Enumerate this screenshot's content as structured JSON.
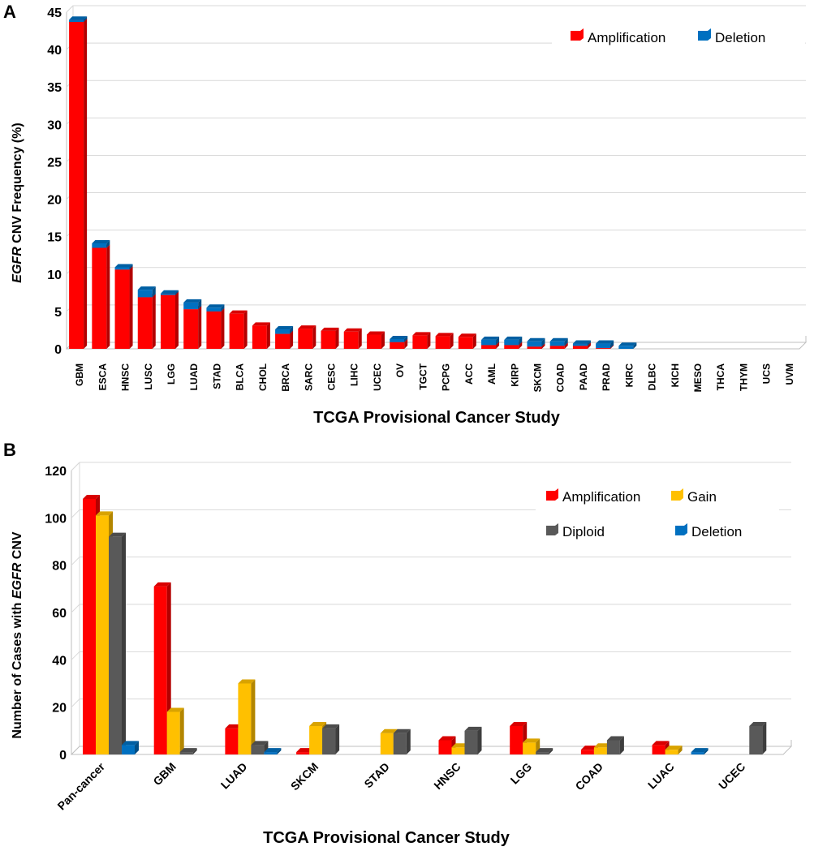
{
  "panels": [
    {
      "letter": "A",
      "ylabel_italic": "EGFR",
      "ylabel_rest": " CNV Frequency (%)",
      "xlabel": "TCGA Provisional Cancer Study",
      "legend": [
        {
          "label": "Amplification",
          "color": "#ff0000"
        },
        {
          "label": "Deletion",
          "color": "#0070c0"
        }
      ]
    },
    {
      "letter": "B",
      "ylabel_prefix": "Number of Cases with ",
      "ylabel_italic": "EGFR",
      "ylabel_suffix": " CNV",
      "xlabel": "TCGA Provisional Cancer Study",
      "legend": [
        {
          "label": "Amplification",
          "color": "#ff0000"
        },
        {
          "label": "Gain",
          "color": "#ffc000"
        },
        {
          "label": "Diploid",
          "color": "#595959"
        },
        {
          "label": "Deletion",
          "color": "#0070c0"
        }
      ]
    }
  ],
  "chart_data": [
    {
      "type": "bar",
      "stacked": true,
      "ylim": [
        0,
        45
      ],
      "yticks": [
        0,
        5,
        10,
        15,
        20,
        25,
        30,
        35,
        40,
        45
      ],
      "categories": [
        "GBM",
        "ESCA",
        "HNSC",
        "LUSC",
        "LGG",
        "LUAD",
        "STAD",
        "BLCA",
        "CHOL",
        "BRCA",
        "SARC",
        "CESC",
        "LIHC",
        "UCEC",
        "OV",
        "TGCT",
        "PCPG",
        "ACC",
        "AML",
        "KIRP",
        "SKCM",
        "COAD",
        "PAAD",
        "PRAD",
        "KIRC",
        "DLBC",
        "KICH",
        "MESO",
        "THCA",
        "THYM",
        "UCS",
        "UVM"
      ],
      "series": [
        {
          "name": "Amplification",
          "color": "#ff0000",
          "values": [
            43.7,
            13.5,
            10.6,
            6.9,
            7.2,
            5.3,
            5.0,
            4.7,
            3.1,
            2.0,
            2.7,
            2.4,
            2.3,
            1.9,
            0.9,
            1.8,
            1.7,
            1.6,
            0.5,
            0.5,
            0.3,
            0.4,
            0.4,
            0.1,
            0,
            0,
            0,
            0,
            0,
            0,
            0,
            0
          ]
        },
        {
          "name": "Deletion",
          "color": "#0070c0",
          "values": [
            0.3,
            0.6,
            0.3,
            1.0,
            0.2,
            0.9,
            0.5,
            0,
            0,
            0.6,
            0,
            0,
            0,
            0,
            0.4,
            0,
            0,
            0,
            0.7,
            0.7,
            0.7,
            0.6,
            0.3,
            0.6,
            0.4,
            0,
            0,
            0,
            0,
            0,
            0,
            0
          ]
        }
      ],
      "legend_position": "top-right",
      "grid": true
    },
    {
      "type": "bar",
      "stacked": false,
      "ylim": [
        0,
        120
      ],
      "yticks": [
        0,
        20,
        40,
        60,
        80,
        100,
        120
      ],
      "categories": [
        "Pan-cancer",
        "GBM",
        "LUAD",
        "SKCM",
        "STAD",
        "HNSC",
        "LGG",
        "COAD",
        "LUAC",
        "UCEC"
      ],
      "series": [
        {
          "name": "Amplification",
          "color": "#ff0000",
          "values": [
            108,
            71,
            11,
            1,
            0,
            6,
            12,
            2,
            4,
            0
          ]
        },
        {
          "name": "Gain",
          "color": "#ffc000",
          "values": [
            101,
            18,
            30,
            12,
            9,
            3,
            5,
            3,
            2,
            0
          ]
        },
        {
          "name": "Diploid",
          "color": "#595959",
          "values": [
            92,
            1,
            4,
            11,
            9,
            10,
            1,
            6,
            0,
            12
          ]
        },
        {
          "name": "Deletion",
          "color": "#0070c0",
          "values": [
            4,
            0,
            1,
            0,
            0,
            0,
            0,
            0,
            1,
            0
          ]
        }
      ],
      "legend_position": "top-right",
      "grid": true
    }
  ]
}
